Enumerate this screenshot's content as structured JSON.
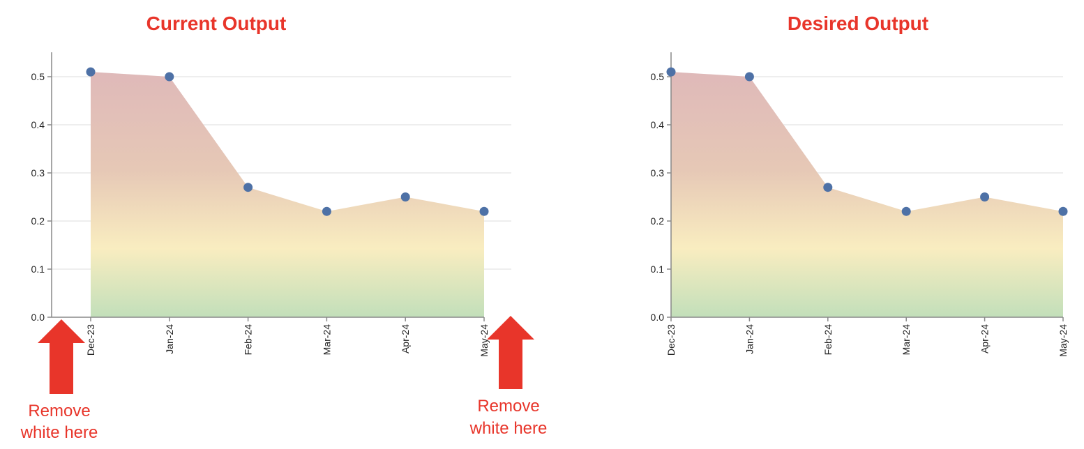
{
  "panels": [
    {
      "title": "Current Output",
      "notes": [
        {
          "lines": [
            "Remove",
            "white here"
          ]
        },
        {
          "lines": [
            "Remove",
            "white here"
          ]
        }
      ]
    },
    {
      "title": "Desired Output",
      "notes": []
    }
  ],
  "colors": {
    "title": "#e8352a",
    "arrow": "#e8352a",
    "point": "#4e71a6",
    "grid": "#dddddd",
    "axis": "#888888",
    "gradient_top": "#dfb9b9",
    "gradient_mid": "#f9edc0",
    "gradient_bottom": "#c2dfba"
  },
  "chart_data": [
    {
      "type": "area",
      "title": "",
      "xlabel": "",
      "ylabel": "",
      "categories": [
        "Dec-23",
        "Jan-24",
        "Feb-24",
        "Mar-24",
        "Apr-24",
        "May-24"
      ],
      "values": [
        0.51,
        0.5,
        0.27,
        0.22,
        0.25,
        0.22
      ],
      "ylim": [
        0,
        0.55
      ],
      "yticks": [
        "0.0",
        "0.1",
        "0.2",
        "0.3",
        "0.4",
        "0.5"
      ],
      "grid": true,
      "x_padding": true
    },
    {
      "type": "area",
      "title": "",
      "xlabel": "",
      "ylabel": "",
      "categories": [
        "Dec-23",
        "Jan-24",
        "Feb-24",
        "Mar-24",
        "Apr-24",
        "May-24"
      ],
      "values": [
        0.51,
        0.5,
        0.27,
        0.22,
        0.25,
        0.22
      ],
      "ylim": [
        0,
        0.55
      ],
      "yticks": [
        "0.0",
        "0.1",
        "0.2",
        "0.3",
        "0.4",
        "0.5"
      ],
      "grid": true,
      "x_padding": false
    }
  ]
}
